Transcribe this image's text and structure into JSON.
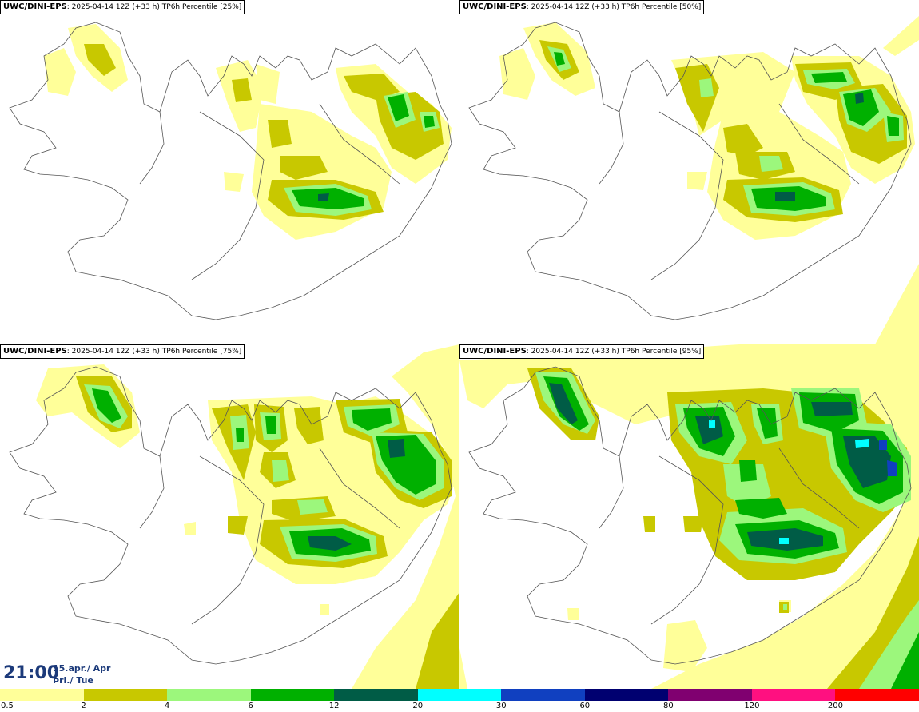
{
  "panels": [
    {
      "model": "UWC/DINI-EPS",
      "run": "2025-04-14 12Z (+33 h)",
      "field": "TP6h Percentile [25%]"
    },
    {
      "model": "UWC/DINI-EPS",
      "run": "2025-04-14 12Z (+33 h)",
      "field": "TP6h Percentile [50%]"
    },
    {
      "model": "UWC/DINI-EPS",
      "run": "2025-04-14 12Z (+33 h)",
      "field": "TP6h Percentile [75%]"
    },
    {
      "model": "UWC/DINI-EPS",
      "run": "2025-04-14 12Z (+33 h)",
      "field": "TP6h Percentile [95%]"
    }
  ],
  "valid_time": {
    "time": "21:00",
    "date_line1": "15.apr./ Apr",
    "date_line2": "Þri./ Tue"
  },
  "legend": {
    "labels": [
      "0.5",
      "2",
      "4",
      "6",
      "12",
      "20",
      "30",
      "60",
      "80",
      "120",
      "200"
    ],
    "colors": [
      "#ffff99",
      "#c8c800",
      "#9cf77c",
      "#00b000",
      "#005c46",
      "#00ffff",
      "#1040c0",
      "#000070",
      "#800070",
      "#ff1080",
      "#ff0000"
    ]
  }
}
